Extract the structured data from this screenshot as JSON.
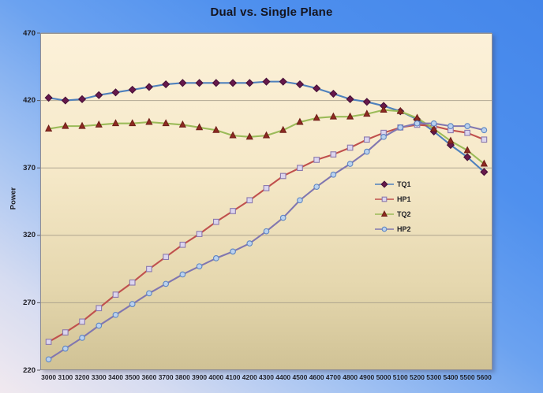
{
  "chart_data": {
    "type": "line",
    "title": "Dual vs. Single Plane",
    "xlabel": "",
    "ylabel": "Power",
    "ylim": [
      220,
      470
    ],
    "y_ticks": [
      220,
      270,
      320,
      370,
      420,
      470
    ],
    "grid": true,
    "legend_position": "inside-center-right",
    "categories": [
      "3000",
      "3100",
      "3200",
      "3300",
      "3400",
      "3500",
      "3600",
      "3700",
      "3800",
      "3900",
      "4000",
      "4100",
      "4200",
      "4300",
      "4400",
      "4500",
      "4600",
      "4700",
      "4800",
      "4900",
      "5000",
      "5100",
      "5200",
      "5300",
      "5400",
      "5500",
      "5600"
    ],
    "series": [
      {
        "name": "TQ1",
        "marker": "diamond",
        "line_color": "#4F81BD",
        "marker_fill": "#67194B",
        "marker_stroke": "#471038",
        "values": [
          422,
          420,
          421,
          424,
          426,
          428,
          430,
          432,
          433,
          433,
          433,
          433,
          433,
          434,
          434,
          432,
          429,
          425,
          421,
          419,
          416,
          412,
          406,
          397,
          387,
          378,
          367
        ]
      },
      {
        "name": "HP1",
        "marker": "square",
        "line_color": "#C0504D",
        "marker_fill": "#DCD5EE",
        "marker_stroke": "#8B79AE",
        "values": [
          241,
          248,
          256,
          266,
          276,
          285,
          295,
          304,
          313,
          321,
          330,
          338,
          346,
          355,
          364,
          370,
          376,
          380,
          385,
          391,
          396,
          400,
          402,
          401,
          398,
          396,
          391
        ]
      },
      {
        "name": "TQ2",
        "marker": "triangle",
        "line_color": "#9BBB59",
        "marker_fill": "#8E2A22",
        "marker_stroke": "#701F19",
        "values": [
          399,
          401,
          401,
          402,
          403,
          403,
          404,
          403,
          402,
          400,
          398,
          394,
          393,
          394,
          398,
          404,
          407,
          408,
          408,
          410,
          413,
          412,
          407,
          399,
          390,
          383,
          373
        ]
      },
      {
        "name": "HP2",
        "marker": "circle",
        "line_color": "#8177B0",
        "marker_fill": "#BAD1EE",
        "marker_stroke": "#5E86C2",
        "values": [
          228,
          236,
          244,
          253,
          261,
          269,
          277,
          284,
          291,
          297,
          303,
          308,
          314,
          323,
          333,
          346,
          356,
          365,
          373,
          382,
          393,
          400,
          403,
          403,
          401,
          401,
          398
        ]
      }
    ]
  },
  "style": {
    "background_top": "#4486EA",
    "background_bottom": "#F1E9EF",
    "plot_fill_top": "#FCF1D9",
    "plot_fill_bottom": "#D0C295",
    "gridline_color": "#A59C89",
    "title_color": "#14141E",
    "label_color": "#1D1D24"
  }
}
